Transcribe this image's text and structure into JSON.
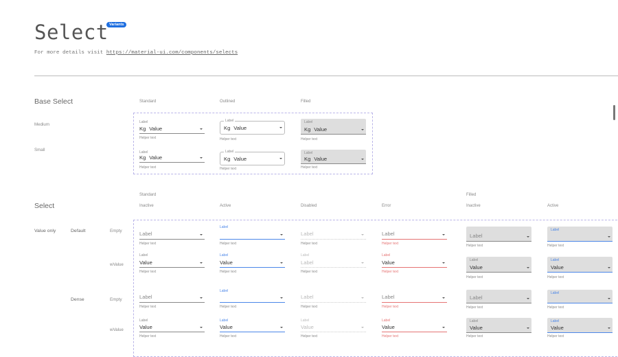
{
  "header": {
    "title": "Select",
    "badge": "Variants",
    "subtitle_prefix": "For more details visit ",
    "subtitle_link": "https://material-ui.com/components/selects"
  },
  "colors": {
    "accent": "#4a86e8",
    "error": "#e57373",
    "badge": "#1f6fe0",
    "filled_bg": "#dedede",
    "dash": "#b9b4e8"
  },
  "base_select": {
    "heading": "Base Select",
    "columns": [
      "Standard",
      "Outlined",
      "Filled"
    ],
    "rows": [
      {
        "name": "Medium",
        "cells": [
          {
            "variant": "standard",
            "label": "Label",
            "prefix": "Kg",
            "value": "Value",
            "helper": "Helper text"
          },
          {
            "variant": "outlined",
            "label": "Label",
            "prefix": "Kg",
            "value": "Value",
            "helper": "Helper text"
          },
          {
            "variant": "filled",
            "label": "Label",
            "prefix": "Kg",
            "value": "Value",
            "helper": "Helper text"
          }
        ]
      },
      {
        "name": "Small",
        "cells": [
          {
            "variant": "standard",
            "label": "Label",
            "prefix": "Kg",
            "value": "Value",
            "helper": "Helper text"
          },
          {
            "variant": "outlined",
            "label": "Label",
            "prefix": "Kg",
            "value": "Value",
            "helper": "Helper text"
          },
          {
            "variant": "filled",
            "label": "Label",
            "prefix": "Kg",
            "value": "Value",
            "helper": "Helper text"
          }
        ]
      }
    ]
  },
  "select_section": {
    "heading": "Select",
    "groups": [
      "Standard",
      "Filled"
    ],
    "columns": [
      "Inactive",
      "Active",
      "Disabled",
      "Error",
      "Inactive",
      "Active"
    ],
    "row_group": "Value only",
    "densities": [
      "Default",
      "Dense"
    ],
    "rows": [
      {
        "state": "Empty",
        "cells": [
          {
            "variant": "standard",
            "state": "inactive",
            "placeholder": "Label",
            "helper": "Helper text"
          },
          {
            "variant": "standard",
            "state": "active",
            "label": "Label",
            "helper": "Helper text"
          },
          {
            "variant": "standard",
            "state": "disabled",
            "placeholder": "Label",
            "helper": "Helper text"
          },
          {
            "variant": "standard",
            "state": "error",
            "placeholder": "Label",
            "helper": "Helper text"
          },
          {
            "variant": "filled",
            "state": "inactive",
            "placeholder": "Label",
            "helper": "Helper text"
          },
          {
            "variant": "filled",
            "state": "active",
            "label": "Label",
            "helper": "Helper text"
          }
        ]
      },
      {
        "state": "wValue",
        "cells": [
          {
            "variant": "standard",
            "state": "inactive",
            "label": "Label",
            "value": "Value",
            "helper": "Helper text"
          },
          {
            "variant": "standard",
            "state": "active",
            "label": "Label",
            "value": "Value",
            "helper": "Helper text"
          },
          {
            "variant": "standard",
            "state": "disabled",
            "label": "Label",
            "value": "Label",
            "helper": "Helper text"
          },
          {
            "variant": "standard",
            "state": "error",
            "label": "Label",
            "value": "Value",
            "helper": "Helper text"
          },
          {
            "variant": "filled",
            "state": "inactive",
            "label": "Label",
            "value": "Value",
            "helper": "Helper text"
          },
          {
            "variant": "filled",
            "state": "active",
            "label": "Label",
            "value": "Value",
            "helper": "Helper text"
          }
        ]
      },
      {
        "state": "Empty",
        "cells": [
          {
            "variant": "standard",
            "state": "inactive",
            "placeholder": "Label",
            "helper": "Helper text"
          },
          {
            "variant": "standard",
            "state": "active",
            "label": "Label",
            "helper": "Helper text"
          },
          {
            "variant": "standard",
            "state": "disabled",
            "placeholder": "Label",
            "helper": "Helper text"
          },
          {
            "variant": "standard",
            "state": "error",
            "placeholder": "Label",
            "helper": "Helper text"
          },
          {
            "variant": "filled",
            "state": "inactive",
            "placeholder": "Label",
            "helper": "Helper text"
          },
          {
            "variant": "filled",
            "state": "active",
            "label": "Label",
            "helper": "Helper text"
          }
        ]
      },
      {
        "state": "wValue",
        "cells": [
          {
            "variant": "standard",
            "state": "inactive",
            "label": "Label",
            "value": "Value",
            "helper": "Helper text"
          },
          {
            "variant": "standard",
            "state": "active",
            "label": "Label",
            "value": "Value",
            "helper": "Helper text"
          },
          {
            "variant": "standard",
            "state": "disabled",
            "label": "Label",
            "value": "Value",
            "helper": "Helper text"
          },
          {
            "variant": "standard",
            "state": "error",
            "label": "Label",
            "value": "Value",
            "helper": "Helper text"
          },
          {
            "variant": "filled",
            "state": "inactive",
            "label": "Label",
            "value": "Value",
            "helper": "Helper text"
          },
          {
            "variant": "filled",
            "state": "active",
            "label": "Label",
            "value": "Value",
            "helper": "Helper text"
          }
        ]
      }
    ]
  }
}
